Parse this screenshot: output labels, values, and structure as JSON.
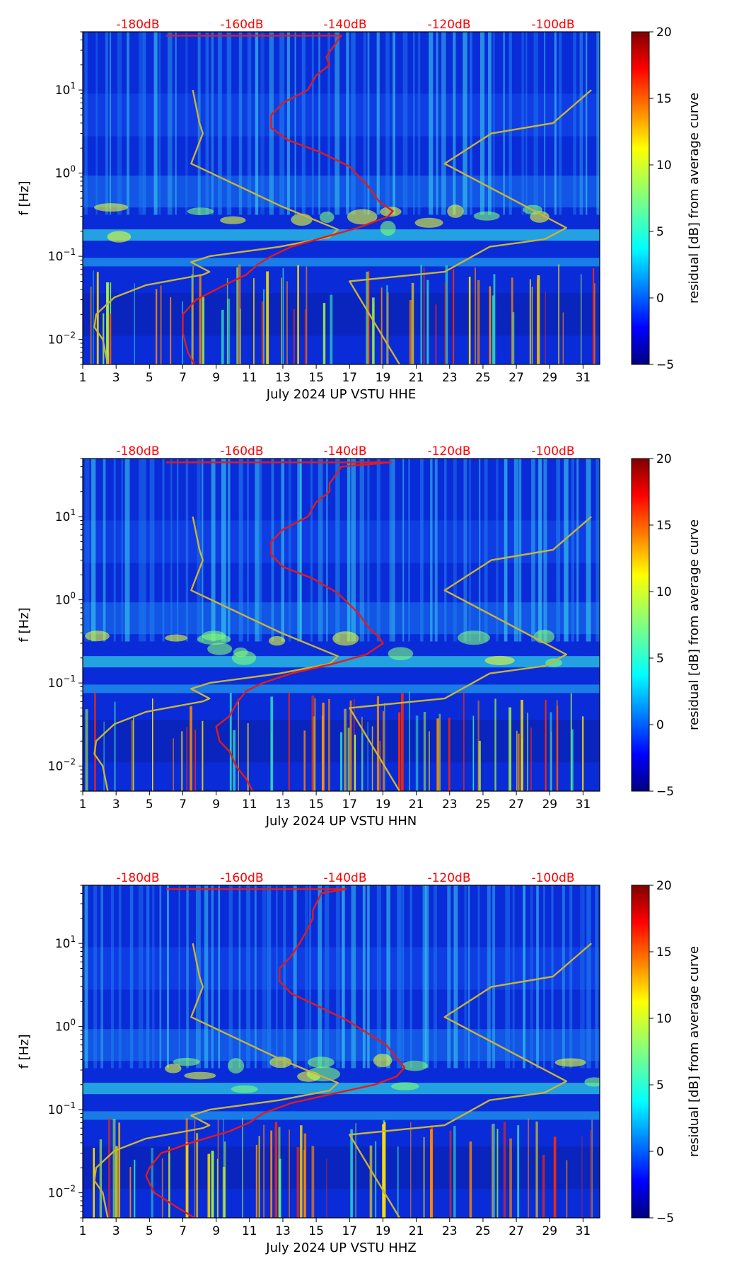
{
  "colors": {
    "top_db_labels": "#ff0000",
    "red_curve": "#e41a1c",
    "yellow_curve": "#c8b43a",
    "colormap": "jet"
  },
  "chart_data": [
    {
      "type": "heatmap",
      "channel": "HHE",
      "xlabel": "July 2024 UP VSTU  HHE",
      "ylabel": "f [Hz]",
      "x_ticks": [
        "1",
        "3",
        "5",
        "7",
        "9",
        "11",
        "13",
        "15",
        "17",
        "19",
        "21",
        "23",
        "25",
        "27",
        "29",
        "31"
      ],
      "xlim": [
        1,
        32
      ],
      "y_scale": "log",
      "ylim": [
        0.005,
        50
      ],
      "y_ticks": [
        {
          "value": 0.01,
          "base": "10",
          "exp": "−2"
        },
        {
          "value": 0.1,
          "base": "10",
          "exp": "−1"
        },
        {
          "value": 1,
          "base": "10",
          "exp": "0"
        },
        {
          "value": 10,
          "base": "10",
          "exp": "1"
        }
      ],
      "top_labels": [
        "-180dB",
        "-160dB",
        "-140dB",
        "-120dB",
        "-100dB"
      ],
      "colorbar": {
        "label": "residual [dB] from average curve",
        "min": -5,
        "max": 20,
        "ticks": [
          "−5",
          "0",
          "5",
          "10",
          "15",
          "20"
        ]
      },
      "red_curve": [
        [
          7.7,
          0.005
        ],
        [
          7.3,
          0.007
        ],
        [
          7.0,
          0.012
        ],
        [
          7.0,
          0.02
        ],
        [
          7.8,
          0.03
        ],
        [
          9.5,
          0.045
        ],
        [
          10.8,
          0.06
        ],
        [
          11.5,
          0.08
        ],
        [
          12.3,
          0.1
        ],
        [
          13.5,
          0.13
        ],
        [
          15.5,
          0.17
        ],
        [
          17.5,
          0.22
        ],
        [
          19.3,
          0.3
        ],
        [
          19.6,
          0.35
        ],
        [
          18.8,
          0.45
        ],
        [
          18.1,
          0.7
        ],
        [
          17.0,
          1.2
        ],
        [
          15.2,
          1.8
        ],
        [
          13.3,
          2.5
        ],
        [
          12.3,
          3.5
        ],
        [
          12.3,
          5
        ],
        [
          13.0,
          7
        ],
        [
          14.5,
          10
        ],
        [
          15.0,
          15
        ],
        [
          15.8,
          20
        ],
        [
          15.6,
          25
        ],
        [
          16.3,
          40
        ],
        [
          16.5,
          45
        ],
        [
          6.0,
          45
        ]
      ],
      "yellow_curve": [
        [
          2.5,
          0.005
        ],
        [
          2.2,
          0.01
        ],
        [
          1.7,
          0.014
        ],
        [
          1.8,
          0.02
        ],
        [
          2.9,
          0.032
        ],
        [
          4.8,
          0.045
        ],
        [
          8.2,
          0.06
        ],
        [
          8.6,
          0.065
        ],
        [
          7.5,
          0.085
        ],
        [
          8.6,
          0.1
        ],
        [
          12.8,
          0.13
        ],
        [
          15.8,
          0.17
        ],
        [
          16.3,
          0.21
        ],
        [
          12.9,
          0.4
        ],
        [
          7.5,
          1.3
        ],
        [
          8.2,
          3
        ],
        [
          8.0,
          4
        ],
        [
          7.6,
          10
        ]
      ],
      "yellow_curve_2": [
        [
          20.0,
          0.005
        ],
        [
          17.0,
          0.05
        ],
        [
          22.7,
          0.065
        ],
        [
          25.4,
          0.13
        ],
        [
          28.7,
          0.16
        ],
        [
          30.0,
          0.22
        ],
        [
          22.7,
          1.3
        ],
        [
          25.5,
          3
        ],
        [
          29.2,
          4
        ],
        [
          31.5,
          10
        ]
      ]
    },
    {
      "type": "heatmap",
      "channel": "HHN",
      "xlabel": "July 2024 UP VSTU  HHN",
      "ylabel": "f [Hz]",
      "x_ticks": [
        "1",
        "3",
        "5",
        "7",
        "9",
        "11",
        "13",
        "15",
        "17",
        "19",
        "21",
        "23",
        "25",
        "27",
        "29",
        "31"
      ],
      "xlim": [
        1,
        32
      ],
      "y_scale": "log",
      "ylim": [
        0.005,
        50
      ],
      "y_ticks": [
        {
          "value": 0.01,
          "base": "10",
          "exp": "−2"
        },
        {
          "value": 0.1,
          "base": "10",
          "exp": "−1"
        },
        {
          "value": 1,
          "base": "10",
          "exp": "0"
        },
        {
          "value": 10,
          "base": "10",
          "exp": "1"
        }
      ],
      "top_labels": [
        "-180dB",
        "-160dB",
        "-140dB",
        "-120dB",
        "-100dB"
      ],
      "colorbar": {
        "label": "residual [dB] from average curve",
        "min": -5,
        "max": 20,
        "ticks": [
          "−5",
          "0",
          "5",
          "10",
          "15",
          "20"
        ]
      },
      "red_curve": [
        [
          11.2,
          0.005
        ],
        [
          10.8,
          0.007
        ],
        [
          10.2,
          0.01
        ],
        [
          9.8,
          0.015
        ],
        [
          9.2,
          0.02
        ],
        [
          9.0,
          0.03
        ],
        [
          9.8,
          0.04
        ],
        [
          10.3,
          0.06
        ],
        [
          10.8,
          0.08
        ],
        [
          11.8,
          0.1
        ],
        [
          13.5,
          0.13
        ],
        [
          16.0,
          0.17
        ],
        [
          18.0,
          0.22
        ],
        [
          19.0,
          0.3
        ],
        [
          18.8,
          0.35
        ],
        [
          18.2,
          0.45
        ],
        [
          17.5,
          0.7
        ],
        [
          16.3,
          1.2
        ],
        [
          14.8,
          1.8
        ],
        [
          13.0,
          2.5
        ],
        [
          12.3,
          3.5
        ],
        [
          12.3,
          5
        ],
        [
          13.0,
          7
        ],
        [
          14.5,
          10
        ],
        [
          15.0,
          15
        ],
        [
          15.8,
          20
        ],
        [
          15.8,
          25
        ],
        [
          16.5,
          40
        ],
        [
          19.5,
          45
        ],
        [
          6.0,
          45
        ]
      ],
      "yellow_curve": [
        [
          2.5,
          0.005
        ],
        [
          2.2,
          0.01
        ],
        [
          1.7,
          0.014
        ],
        [
          1.8,
          0.02
        ],
        [
          2.9,
          0.032
        ],
        [
          4.8,
          0.045
        ],
        [
          8.2,
          0.06
        ],
        [
          8.6,
          0.065
        ],
        [
          7.5,
          0.085
        ],
        [
          8.6,
          0.1
        ],
        [
          12.8,
          0.13
        ],
        [
          15.8,
          0.17
        ],
        [
          16.3,
          0.21
        ],
        [
          12.9,
          0.4
        ],
        [
          7.5,
          1.3
        ],
        [
          8.2,
          3
        ],
        [
          8.0,
          4
        ],
        [
          7.6,
          10
        ]
      ],
      "yellow_curve_2": [
        [
          20.0,
          0.005
        ],
        [
          17.0,
          0.05
        ],
        [
          22.7,
          0.065
        ],
        [
          25.4,
          0.13
        ],
        [
          28.7,
          0.16
        ],
        [
          30.0,
          0.22
        ],
        [
          22.7,
          1.3
        ],
        [
          25.5,
          3
        ],
        [
          29.2,
          4
        ],
        [
          31.5,
          10
        ]
      ]
    },
    {
      "type": "heatmap",
      "channel": "HHZ",
      "xlabel": "July 2024 UP VSTU  HHZ",
      "ylabel": "f [Hz]",
      "x_ticks": [
        "1",
        "3",
        "5",
        "7",
        "9",
        "11",
        "13",
        "15",
        "17",
        "19",
        "21",
        "23",
        "25",
        "27",
        "29",
        "31"
      ],
      "xlim": [
        1,
        32
      ],
      "y_scale": "log",
      "ylim": [
        0.005,
        50
      ],
      "y_ticks": [
        {
          "value": 0.01,
          "base": "10",
          "exp": "−2"
        },
        {
          "value": 0.1,
          "base": "10",
          "exp": "−1"
        },
        {
          "value": 1,
          "base": "10",
          "exp": "0"
        },
        {
          "value": 10,
          "base": "10",
          "exp": "1"
        }
      ],
      "top_labels": [
        "-180dB",
        "-160dB",
        "-140dB",
        "-120dB",
        "-100dB"
      ],
      "colorbar": {
        "label": "residual [dB] from average curve",
        "min": -5,
        "max": 20,
        "ticks": [
          "−5",
          "0",
          "5",
          "10",
          "15",
          "20"
        ]
      },
      "red_curve": [
        [
          7.7,
          0.005
        ],
        [
          6.5,
          0.007
        ],
        [
          5.3,
          0.01
        ],
        [
          5.0,
          0.013
        ],
        [
          4.8,
          0.016
        ],
        [
          5.0,
          0.02
        ],
        [
          5.7,
          0.03
        ],
        [
          7.5,
          0.04
        ],
        [
          9.8,
          0.055
        ],
        [
          11.0,
          0.07
        ],
        [
          11.8,
          0.09
        ],
        [
          13.5,
          0.12
        ],
        [
          16.3,
          0.16
        ],
        [
          18.5,
          0.2
        ],
        [
          19.8,
          0.25
        ],
        [
          20.3,
          0.32
        ],
        [
          19.9,
          0.4
        ],
        [
          19.2,
          0.6
        ],
        [
          17.8,
          0.9
        ],
        [
          16.8,
          1.2
        ],
        [
          15.0,
          1.8
        ],
        [
          13.5,
          2.5
        ],
        [
          12.8,
          3.5
        ],
        [
          12.8,
          5
        ],
        [
          13.5,
          7
        ],
        [
          14.0,
          10
        ],
        [
          14.5,
          15
        ],
        [
          14.8,
          20
        ],
        [
          14.8,
          25
        ],
        [
          15.3,
          40
        ],
        [
          16.8,
          45
        ],
        [
          6.0,
          45
        ]
      ],
      "yellow_curve": [
        [
          2.5,
          0.005
        ],
        [
          2.2,
          0.01
        ],
        [
          1.7,
          0.014
        ],
        [
          1.8,
          0.02
        ],
        [
          2.9,
          0.032
        ],
        [
          4.8,
          0.045
        ],
        [
          8.2,
          0.06
        ],
        [
          8.6,
          0.065
        ],
        [
          7.5,
          0.085
        ],
        [
          8.6,
          0.1
        ],
        [
          12.8,
          0.13
        ],
        [
          15.8,
          0.17
        ],
        [
          16.3,
          0.21
        ],
        [
          12.9,
          0.4
        ],
        [
          7.5,
          1.3
        ],
        [
          8.2,
          3
        ],
        [
          8.0,
          4
        ],
        [
          7.6,
          10
        ]
      ],
      "yellow_curve_2": [
        [
          20.0,
          0.005
        ],
        [
          17.0,
          0.05
        ],
        [
          22.7,
          0.065
        ],
        [
          25.4,
          0.13
        ],
        [
          28.7,
          0.16
        ],
        [
          30.0,
          0.22
        ],
        [
          22.7,
          1.3
        ],
        [
          25.5,
          3
        ],
        [
          29.2,
          4
        ],
        [
          31.5,
          10
        ]
      ]
    }
  ]
}
